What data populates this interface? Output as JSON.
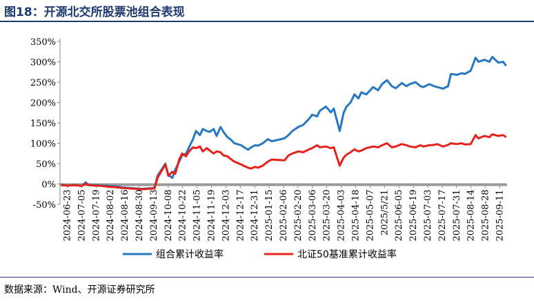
{
  "header": {
    "title": "图18：开源北交所股票池组合表现"
  },
  "footer": {
    "source": "数据来源：Wind、开源证券研究所"
  },
  "colors": {
    "title": "#1e3a6e",
    "portfolio": "#2677bf",
    "benchmark": "#e5211c",
    "axis": "#888888"
  },
  "chart_data": {
    "type": "line",
    "title": "",
    "xlabel": "",
    "ylabel": "",
    "ylim": [
      -50,
      350
    ],
    "y_ticks": [
      -50,
      0,
      50,
      100,
      150,
      200,
      250,
      300,
      350
    ],
    "y_tick_labels": [
      "-50%",
      "0%",
      "50%",
      "100%",
      "150%",
      "200%",
      "250%",
      "300%",
      "350%"
    ],
    "x_range": [
      "2024-06-23",
      "2025-09-20"
    ],
    "x_tick_labels": [
      "2024-06-23",
      "2024-07-05",
      "2024-07-19",
      "2024-08-02",
      "2024-08-16",
      "2024-08-30",
      "2024-09-13",
      "2024-10-08",
      "2024-10-22",
      "2024-11-05",
      "2024-11-19",
      "2024-12-03",
      "2024-12-17",
      "2024-12-31",
      "2025-01-15",
      "2025-02-06",
      "2025-02-20",
      "2025-03-06",
      "2025-03-20",
      "2025-04-03",
      "2025-04-18",
      "2025-05-07",
      "2025/5/21",
      "2025-06-05",
      "2025-06-19",
      "2025-07-03",
      "2025-07-17",
      "2025-07-31",
      "2025-08-14",
      "2025-08-28",
      "2025-09-11"
    ],
    "legend": "bottom",
    "series": [
      {
        "name": "组合累计收益率",
        "color": "#2677bf",
        "x": [
          "2024-06-24",
          "2024-07-01",
          "2024-07-08",
          "2024-07-15",
          "2024-07-19",
          "2024-07-22",
          "2024-07-29",
          "2024-08-05",
          "2024-08-12",
          "2024-08-19",
          "2024-08-26",
          "2024-09-02",
          "2024-09-09",
          "2024-09-13",
          "2024-09-20",
          "2024-09-27",
          "2024-09-30",
          "2024-10-08",
          "2024-10-11",
          "2024-10-15",
          "2024-10-18",
          "2024-10-22",
          "2024-10-25",
          "2024-10-29",
          "2024-11-01",
          "2024-11-05",
          "2024-11-08",
          "2024-11-12",
          "2024-11-15",
          "2024-11-19",
          "2024-11-22",
          "2024-11-26",
          "2024-11-29",
          "2024-12-03",
          "2024-12-06",
          "2024-12-10",
          "2024-12-13",
          "2024-12-17",
          "2024-12-20",
          "2024-12-24",
          "2024-12-27",
          "2024-12-31",
          "2025-01-03",
          "2025-01-07",
          "2025-01-10",
          "2025-01-15",
          "2025-01-20",
          "2025-01-24",
          "2025-02-06",
          "2025-02-10",
          "2025-02-14",
          "2025-02-20",
          "2025-02-25",
          "2025-03-03",
          "2025-03-06",
          "2025-03-11",
          "2025-03-14",
          "2025-03-20",
          "2025-03-25",
          "2025-03-28",
          "2025-04-03",
          "2025-04-07",
          "2025-04-10",
          "2025-04-14",
          "2025-04-18",
          "2025-04-22",
          "2025-04-25",
          "2025-04-30",
          "2025-05-07",
          "2025-05-12",
          "2025-05-16",
          "2025-05-21",
          "2025-05-26",
          "2025-05-30",
          "2025-06-05",
          "2025-06-10",
          "2025-06-13",
          "2025-06-19",
          "2025-06-24",
          "2025-06-27",
          "2025-07-03",
          "2025-07-08",
          "2025-07-11",
          "2025-07-17",
          "2025-07-22",
          "2025-07-25",
          "2025-07-31",
          "2025-08-05",
          "2025-08-08",
          "2025-08-14",
          "2025-08-19",
          "2025-08-22",
          "2025-08-28",
          "2025-09-02",
          "2025-09-05",
          "2025-09-11",
          "2025-09-16",
          "2025-09-19"
        ],
        "values": [
          -3,
          -4,
          -2,
          -5,
          4,
          -2,
          -3,
          -4,
          -5,
          -6,
          -9,
          -10,
          -11,
          -12,
          -11,
          -10,
          20,
          50,
          22,
          15,
          35,
          55,
          70,
          75,
          90,
          110,
          130,
          120,
          135,
          130,
          128,
          135,
          118,
          140,
          128,
          115,
          110,
          100,
          98,
          95,
          90,
          84,
          90,
          95,
          94,
          100,
          110,
          105,
          112,
          120,
          130,
          140,
          145,
          160,
          170,
          166,
          180,
          190,
          176,
          185,
          130,
          175,
          190,
          200,
          220,
          210,
          225,
          220,
          238,
          230,
          245,
          255,
          240,
          235,
          248,
          240,
          245,
          250,
          240,
          238,
          245,
          240,
          238,
          234,
          240,
          270,
          268,
          272,
          270,
          278,
          310,
          300,
          305,
          300,
          312,
          298,
          300,
          290
        ]
      },
      {
        "name": "北证50基准累计收益率",
        "color": "#e5211c",
        "x": [
          "2024-06-24",
          "2024-07-01",
          "2024-07-08",
          "2024-07-15",
          "2024-07-19",
          "2024-07-22",
          "2024-07-29",
          "2024-08-05",
          "2024-08-12",
          "2024-08-19",
          "2024-08-26",
          "2024-09-02",
          "2024-09-09",
          "2024-09-13",
          "2024-09-20",
          "2024-09-27",
          "2024-09-30",
          "2024-10-08",
          "2024-10-11",
          "2024-10-15",
          "2024-10-18",
          "2024-10-22",
          "2024-10-25",
          "2024-10-29",
          "2024-11-01",
          "2024-11-05",
          "2024-11-08",
          "2024-11-12",
          "2024-11-15",
          "2024-11-19",
          "2024-11-22",
          "2024-11-26",
          "2024-11-29",
          "2024-12-03",
          "2024-12-06",
          "2024-12-10",
          "2024-12-13",
          "2024-12-17",
          "2024-12-20",
          "2024-12-24",
          "2024-12-27",
          "2024-12-31",
          "2025-01-03",
          "2025-01-07",
          "2025-01-10",
          "2025-01-15",
          "2025-01-20",
          "2025-01-24",
          "2025-02-06",
          "2025-02-10",
          "2025-02-14",
          "2025-02-20",
          "2025-02-25",
          "2025-03-03",
          "2025-03-06",
          "2025-03-11",
          "2025-03-14",
          "2025-03-20",
          "2025-03-25",
          "2025-03-28",
          "2025-04-03",
          "2025-04-07",
          "2025-04-10",
          "2025-04-14",
          "2025-04-18",
          "2025-04-22",
          "2025-04-25",
          "2025-04-30",
          "2025-05-07",
          "2025-05-12",
          "2025-05-16",
          "2025-05-21",
          "2025-05-26",
          "2025-05-30",
          "2025-06-05",
          "2025-06-10",
          "2025-06-13",
          "2025-06-19",
          "2025-06-24",
          "2025-06-27",
          "2025-07-03",
          "2025-07-08",
          "2025-07-11",
          "2025-07-17",
          "2025-07-22",
          "2025-07-25",
          "2025-07-31",
          "2025-08-05",
          "2025-08-08",
          "2025-08-14",
          "2025-08-19",
          "2025-08-22",
          "2025-08-28",
          "2025-09-02",
          "2025-09-05",
          "2025-09-11",
          "2025-09-16",
          "2025-09-19"
        ],
        "values": [
          -2,
          -4,
          -3,
          -5,
          1,
          -3,
          -4,
          -5,
          -7,
          -8,
          -10,
          -11,
          -12,
          -13,
          -12,
          -11,
          15,
          48,
          20,
          30,
          25,
          60,
          75,
          68,
          80,
          90,
          88,
          92,
          80,
          88,
          82,
          75,
          80,
          78,
          70,
          68,
          62,
          55,
          52,
          48,
          44,
          40,
          38,
          42,
          40,
          45,
          55,
          60,
          58,
          70,
          75,
          80,
          78,
          85,
          88,
          95,
          90,
          92,
          88,
          90,
          45,
          65,
          72,
          78,
          85,
          80,
          82,
          88,
          92,
          90,
          95,
          100,
          90,
          92,
          98,
          95,
          92,
          90,
          95,
          92,
          95,
          96,
          98,
          92,
          96,
          100,
          98,
          100,
          97,
          98,
          120,
          112,
          118,
          115,
          122,
          118,
          120,
          115
        ]
      }
    ]
  }
}
